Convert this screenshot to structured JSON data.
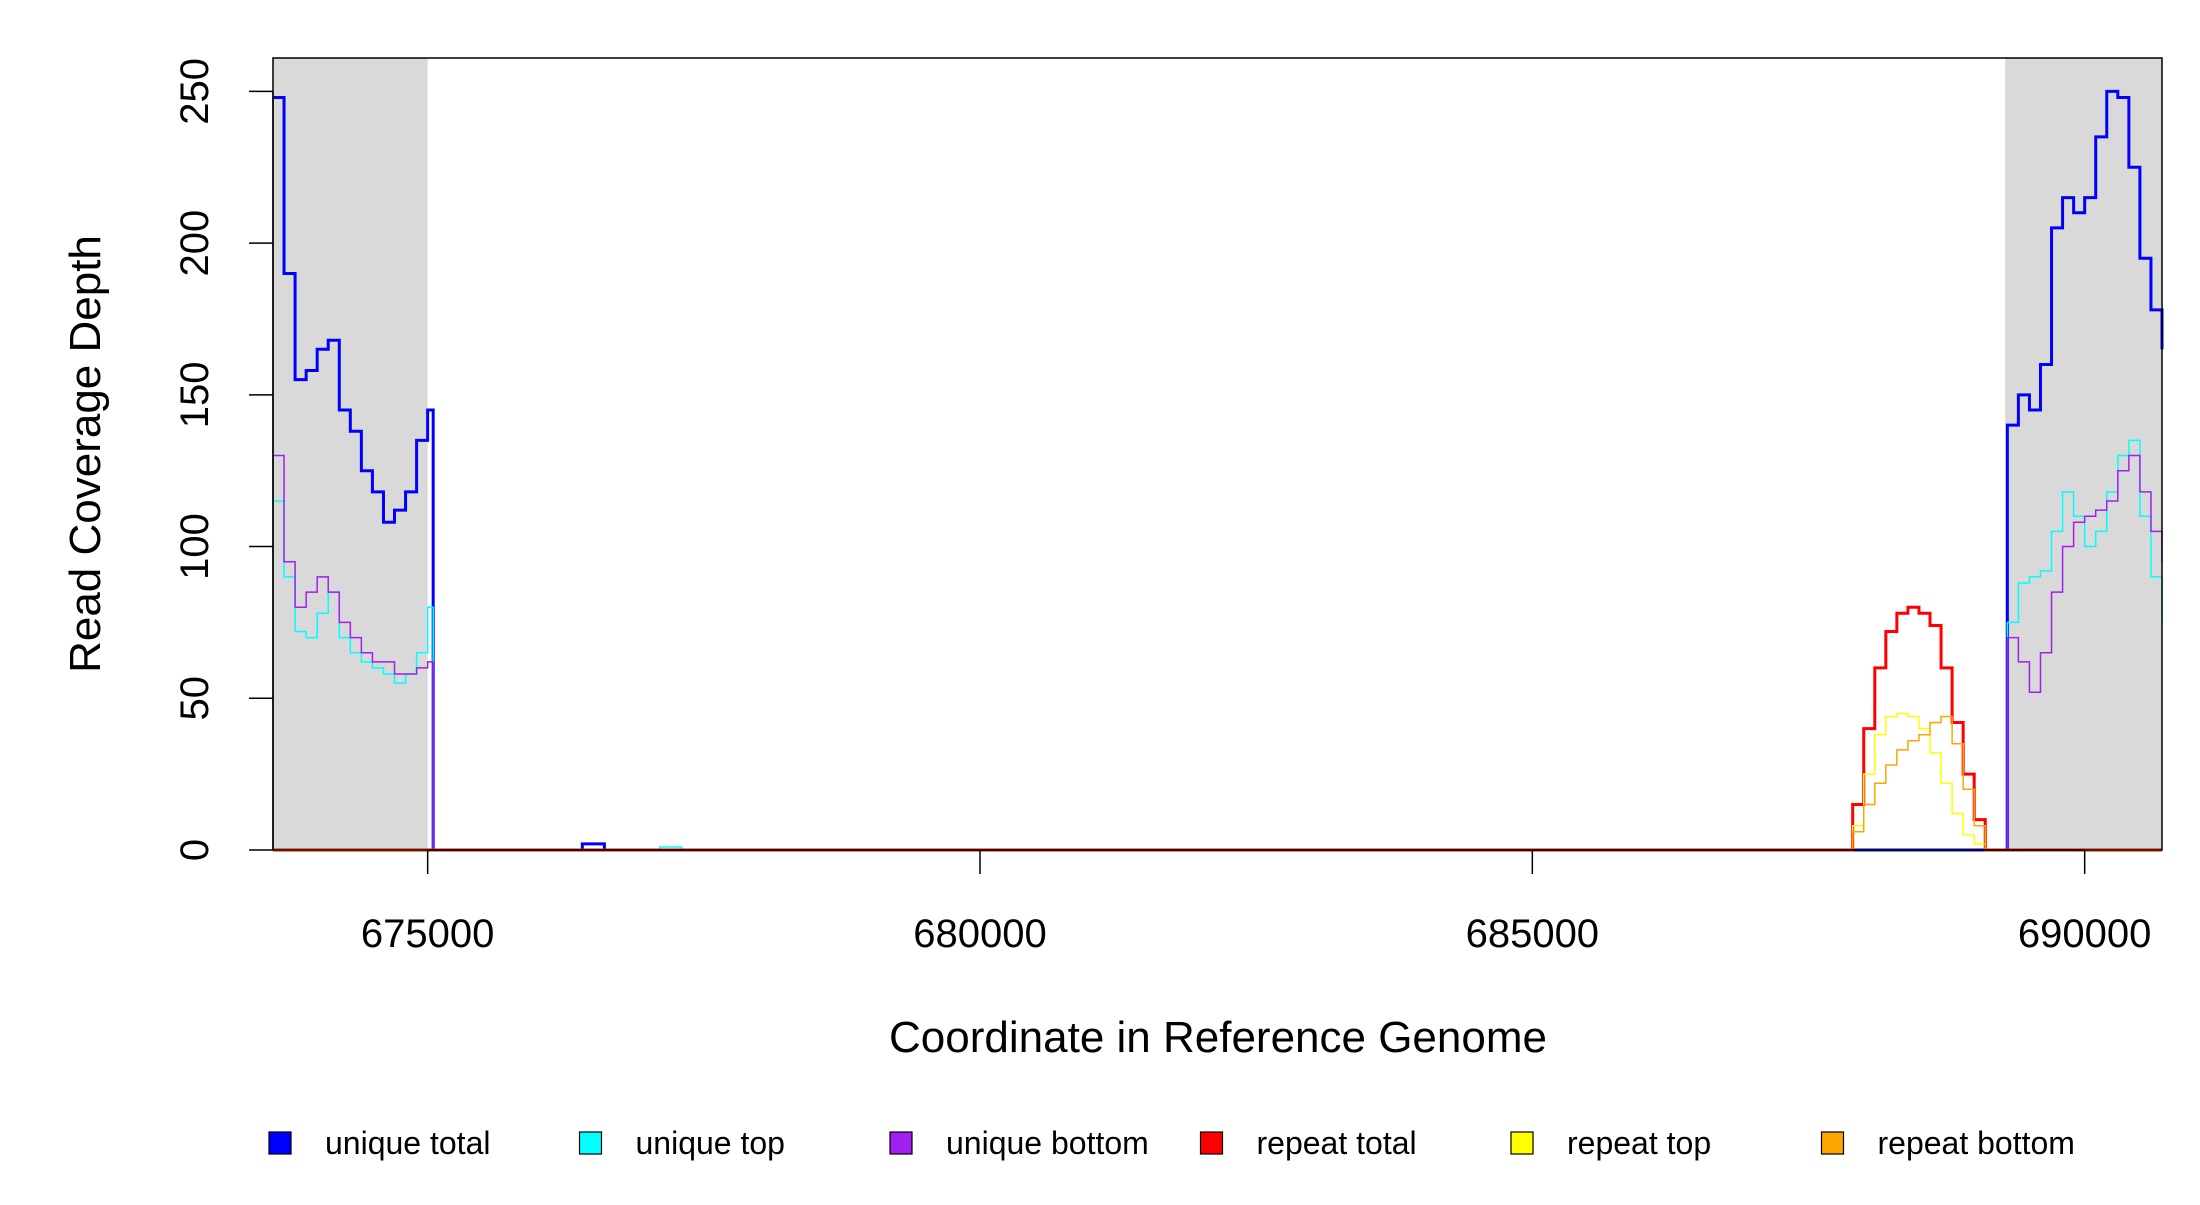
{
  "chart_data": {
    "type": "line",
    "step": true,
    "xlabel": "Coordinate in Reference Genome",
    "ylabel": "Read Coverage Depth",
    "x": [
      673600,
      673700,
      673800,
      673900,
      674000,
      674100,
      674200,
      674300,
      674400,
      674500,
      674600,
      674700,
      674800,
      674900,
      675000,
      675050,
      676300,
      676400,
      676600,
      677100,
      677300,
      687800,
      687900,
      688000,
      688100,
      688200,
      688300,
      688400,
      688500,
      688600,
      688700,
      688800,
      688900,
      689000,
      689100,
      689250,
      689300,
      689400,
      689500,
      689600,
      689700,
      689800,
      689900,
      690000,
      690100,
      690200,
      690300,
      690400,
      690500,
      690600,
      690700
    ],
    "series": [
      {
        "name": "unique total",
        "color": "#0000ff",
        "width": 3,
        "values": [
          248,
          190,
          155,
          158,
          165,
          168,
          145,
          138,
          125,
          118,
          108,
          112,
          118,
          135,
          145,
          0,
          0,
          2,
          0,
          0,
          0,
          0,
          0,
          0,
          0,
          0,
          0,
          0,
          0,
          0,
          0,
          0,
          0,
          0,
          0,
          0,
          140,
          150,
          145,
          160,
          205,
          215,
          210,
          215,
          235,
          250,
          248,
          225,
          195,
          178,
          165
        ]
      },
      {
        "name": "unique top",
        "color": "#00ffff",
        "width": 1.5,
        "values": [
          115,
          90,
          72,
          70,
          78,
          85,
          70,
          65,
          62,
          60,
          58,
          55,
          58,
          65,
          80,
          0,
          0,
          0,
          0,
          1,
          0,
          0,
          0,
          0,
          0,
          0,
          0,
          0,
          0,
          0,
          0,
          0,
          0,
          0,
          0,
          0,
          75,
          88,
          90,
          92,
          105,
          118,
          110,
          100,
          105,
          118,
          130,
          135,
          110,
          90,
          75
        ]
      },
      {
        "name": "unique bottom",
        "color": "#a020f0",
        "width": 1.5,
        "values": [
          130,
          95,
          80,
          85,
          90,
          85,
          75,
          70,
          65,
          62,
          62,
          58,
          58,
          60,
          62,
          0,
          0,
          0,
          0,
          0,
          0,
          0,
          0,
          0,
          0,
          0,
          0,
          0,
          0,
          0,
          0,
          0,
          0,
          0,
          0,
          0,
          70,
          62,
          52,
          65,
          85,
          100,
          108,
          110,
          112,
          115,
          125,
          130,
          118,
          105,
          95
        ]
      },
      {
        "name": "repeat total",
        "color": "#ff0000",
        "width": 3,
        "values": [
          0,
          0,
          0,
          0,
          0,
          0,
          0,
          0,
          0,
          0,
          0,
          0,
          0,
          0,
          0,
          0,
          0,
          0,
          0,
          0,
          0,
          0,
          15,
          40,
          60,
          72,
          78,
          80,
          78,
          74,
          60,
          42,
          25,
          10,
          0,
          0,
          0,
          0,
          0,
          0,
          0,
          0,
          0,
          0,
          0,
          0,
          0,
          0,
          0,
          0,
          0
        ]
      },
      {
        "name": "repeat top",
        "color": "#ffff00",
        "width": 1.5,
        "values": [
          0,
          0,
          0,
          0,
          0,
          0,
          0,
          0,
          0,
          0,
          0,
          0,
          0,
          0,
          0,
          0,
          0,
          0,
          0,
          0,
          0,
          0,
          8,
          25,
          38,
          44,
          45,
          44,
          40,
          32,
          22,
          12,
          5,
          2,
          0,
          0,
          0,
          0,
          0,
          0,
          0,
          0,
          0,
          0,
          0,
          0,
          0,
          0,
          0,
          0,
          0
        ]
      },
      {
        "name": "repeat bottom",
        "color": "#ffa500",
        "width": 1.5,
        "values": [
          0,
          0,
          0,
          0,
          0,
          0,
          0,
          0,
          0,
          0,
          0,
          0,
          0,
          0,
          0,
          0,
          0,
          0,
          0,
          0,
          0,
          0,
          6,
          15,
          22,
          28,
          33,
          36,
          38,
          42,
          44,
          35,
          20,
          8,
          0,
          0,
          0,
          0,
          0,
          0,
          0,
          0,
          0,
          0,
          0,
          0,
          0,
          0,
          0,
          0,
          0
        ]
      }
    ],
    "highlight_regions": [
      [
        673600,
        675000
      ],
      [
        689280,
        690700
      ]
    ],
    "highlight_color": "#d9d9d9",
    "xlim": [
      673600,
      690700
    ],
    "xticks": [
      675000,
      680000,
      685000,
      690000
    ],
    "ylim": [
      0,
      261
    ],
    "yticks": [
      0,
      50,
      100,
      150,
      200,
      250
    ],
    "grid": false,
    "legend": "bottom"
  }
}
